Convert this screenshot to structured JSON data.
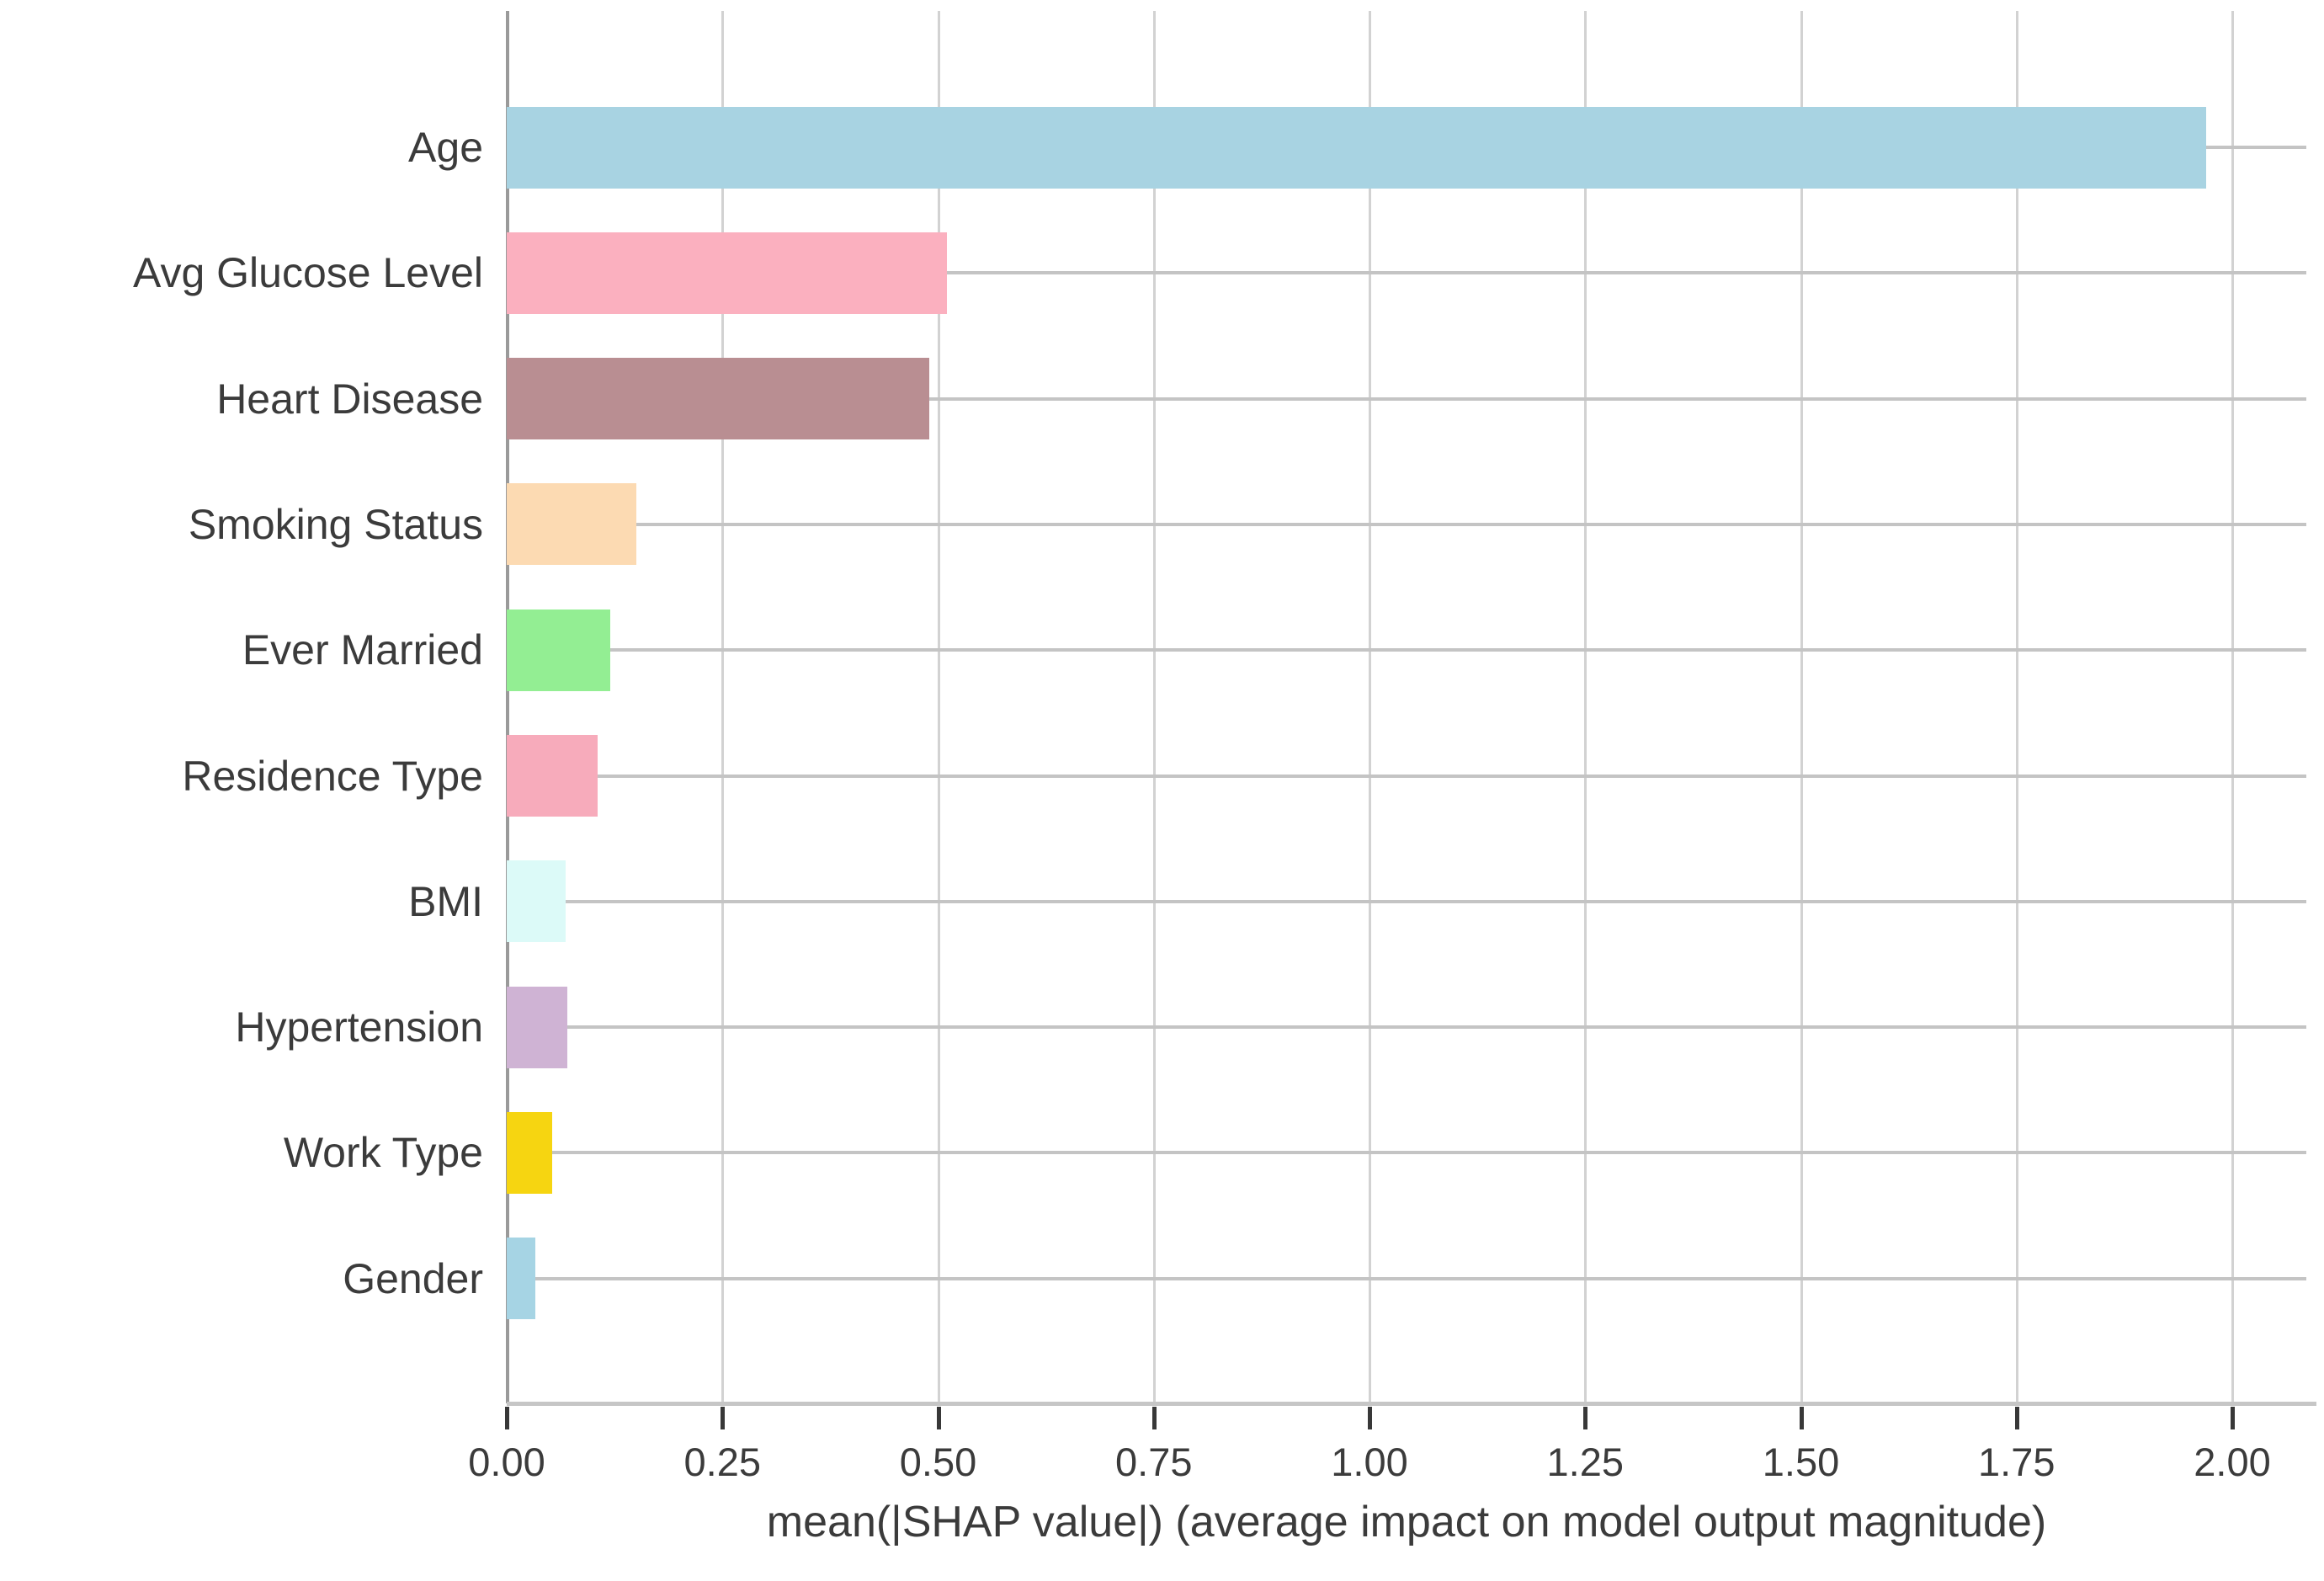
{
  "chart_data": {
    "type": "bar",
    "orientation": "horizontal",
    "title": "",
    "xlabel": "mean(|SHAP value|) (average impact on model output magnitude)",
    "ylabel": "",
    "categories": [
      "Age",
      "Avg Glucose Level",
      "Heart Disease",
      "Smoking Status",
      "Ever Married",
      "Residence Type",
      "BMI",
      "Hypertension",
      "Work Type",
      "Gender"
    ],
    "values": [
      1.97,
      0.51,
      0.49,
      0.15,
      0.12,
      0.105,
      0.068,
      0.07,
      0.053,
      0.033
    ],
    "bar_colors": [
      "#a8d3e2",
      "#fbb0bf",
      "#b98e92",
      "#fcdab2",
      "#93ee93",
      "#f7abbb",
      "#dcfaf8",
      "#cfb3d4",
      "#f6d511",
      "#a6d4e4"
    ],
    "x_ticks": [
      "0.00",
      "0.25",
      "0.50",
      "0.75",
      "1.00",
      "1.25",
      "1.50",
      "1.75",
      "2.00"
    ],
    "x_tick_values": [
      0,
      0.25,
      0.5,
      0.75,
      1.0,
      1.25,
      1.5,
      1.75,
      2.0
    ],
    "xlim": [
      0,
      2.086
    ],
    "grid": true,
    "legend": null,
    "style_colors": {
      "background": "#ffffff",
      "vertical_gridline": "#d2d2d2",
      "row_gridline": "#c4c4c4",
      "left_spine": "#9a9a9a",
      "axis_line": "#c6c6c6",
      "tick_mark": "#383838",
      "text": "#3b3b3b"
    }
  }
}
